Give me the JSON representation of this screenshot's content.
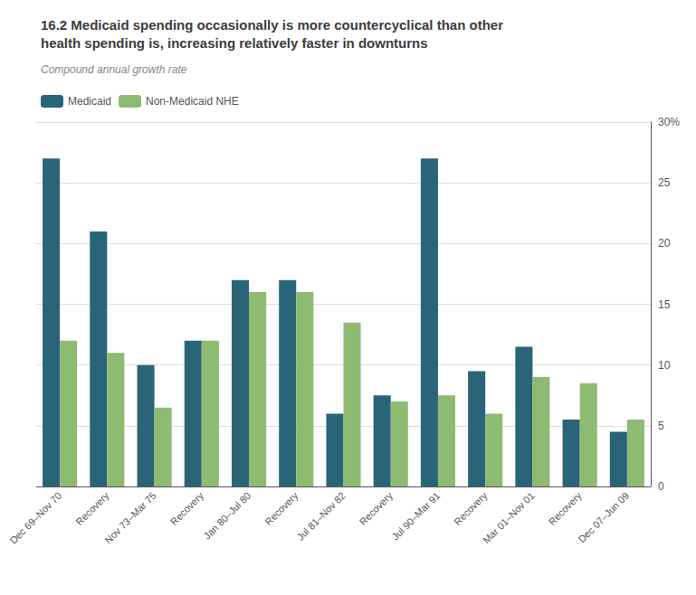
{
  "chart_data": {
    "type": "bar",
    "title": "16.2 Medicaid spending occasionally is more countercyclical than other\nhealth spending is, increasing relatively faster in downturns",
    "subtitle": "Compound annual growth rate",
    "categories": [
      "Dec 69–Nov 70",
      "Recovery",
      "Nov 73–Mar 75",
      "Recovery",
      "Jan 80–Jul 80",
      "Recovery",
      "Jul 81–Nov 82",
      "Recovery",
      "Jul 90–Mar 91",
      "Recovery",
      "Mar 01–Nov 01",
      "Recovery",
      "Dec 07–Jun 09"
    ],
    "series": [
      {
        "name": "Medicaid",
        "color": "#2a6478",
        "values": [
          27.0,
          21.0,
          10.0,
          12.0,
          17.0,
          17.0,
          6.0,
          7.5,
          27.0,
          9.5,
          11.5,
          5.5,
          4.5
        ]
      },
      {
        "name": "Non-Medicaid NHE",
        "color": "#8ebb72",
        "values": [
          12.0,
          11.0,
          6.5,
          12.0,
          16.0,
          16.0,
          13.5,
          7.0,
          7.5,
          6.0,
          9.0,
          8.5,
          5.5
        ]
      }
    ],
    "ylim": [
      0,
      30
    ],
    "yticks": [
      0,
      5,
      10,
      15,
      20,
      25,
      {
        "value": 30,
        "label": "30%"
      }
    ],
    "grid": true,
    "legend": "upper left"
  }
}
